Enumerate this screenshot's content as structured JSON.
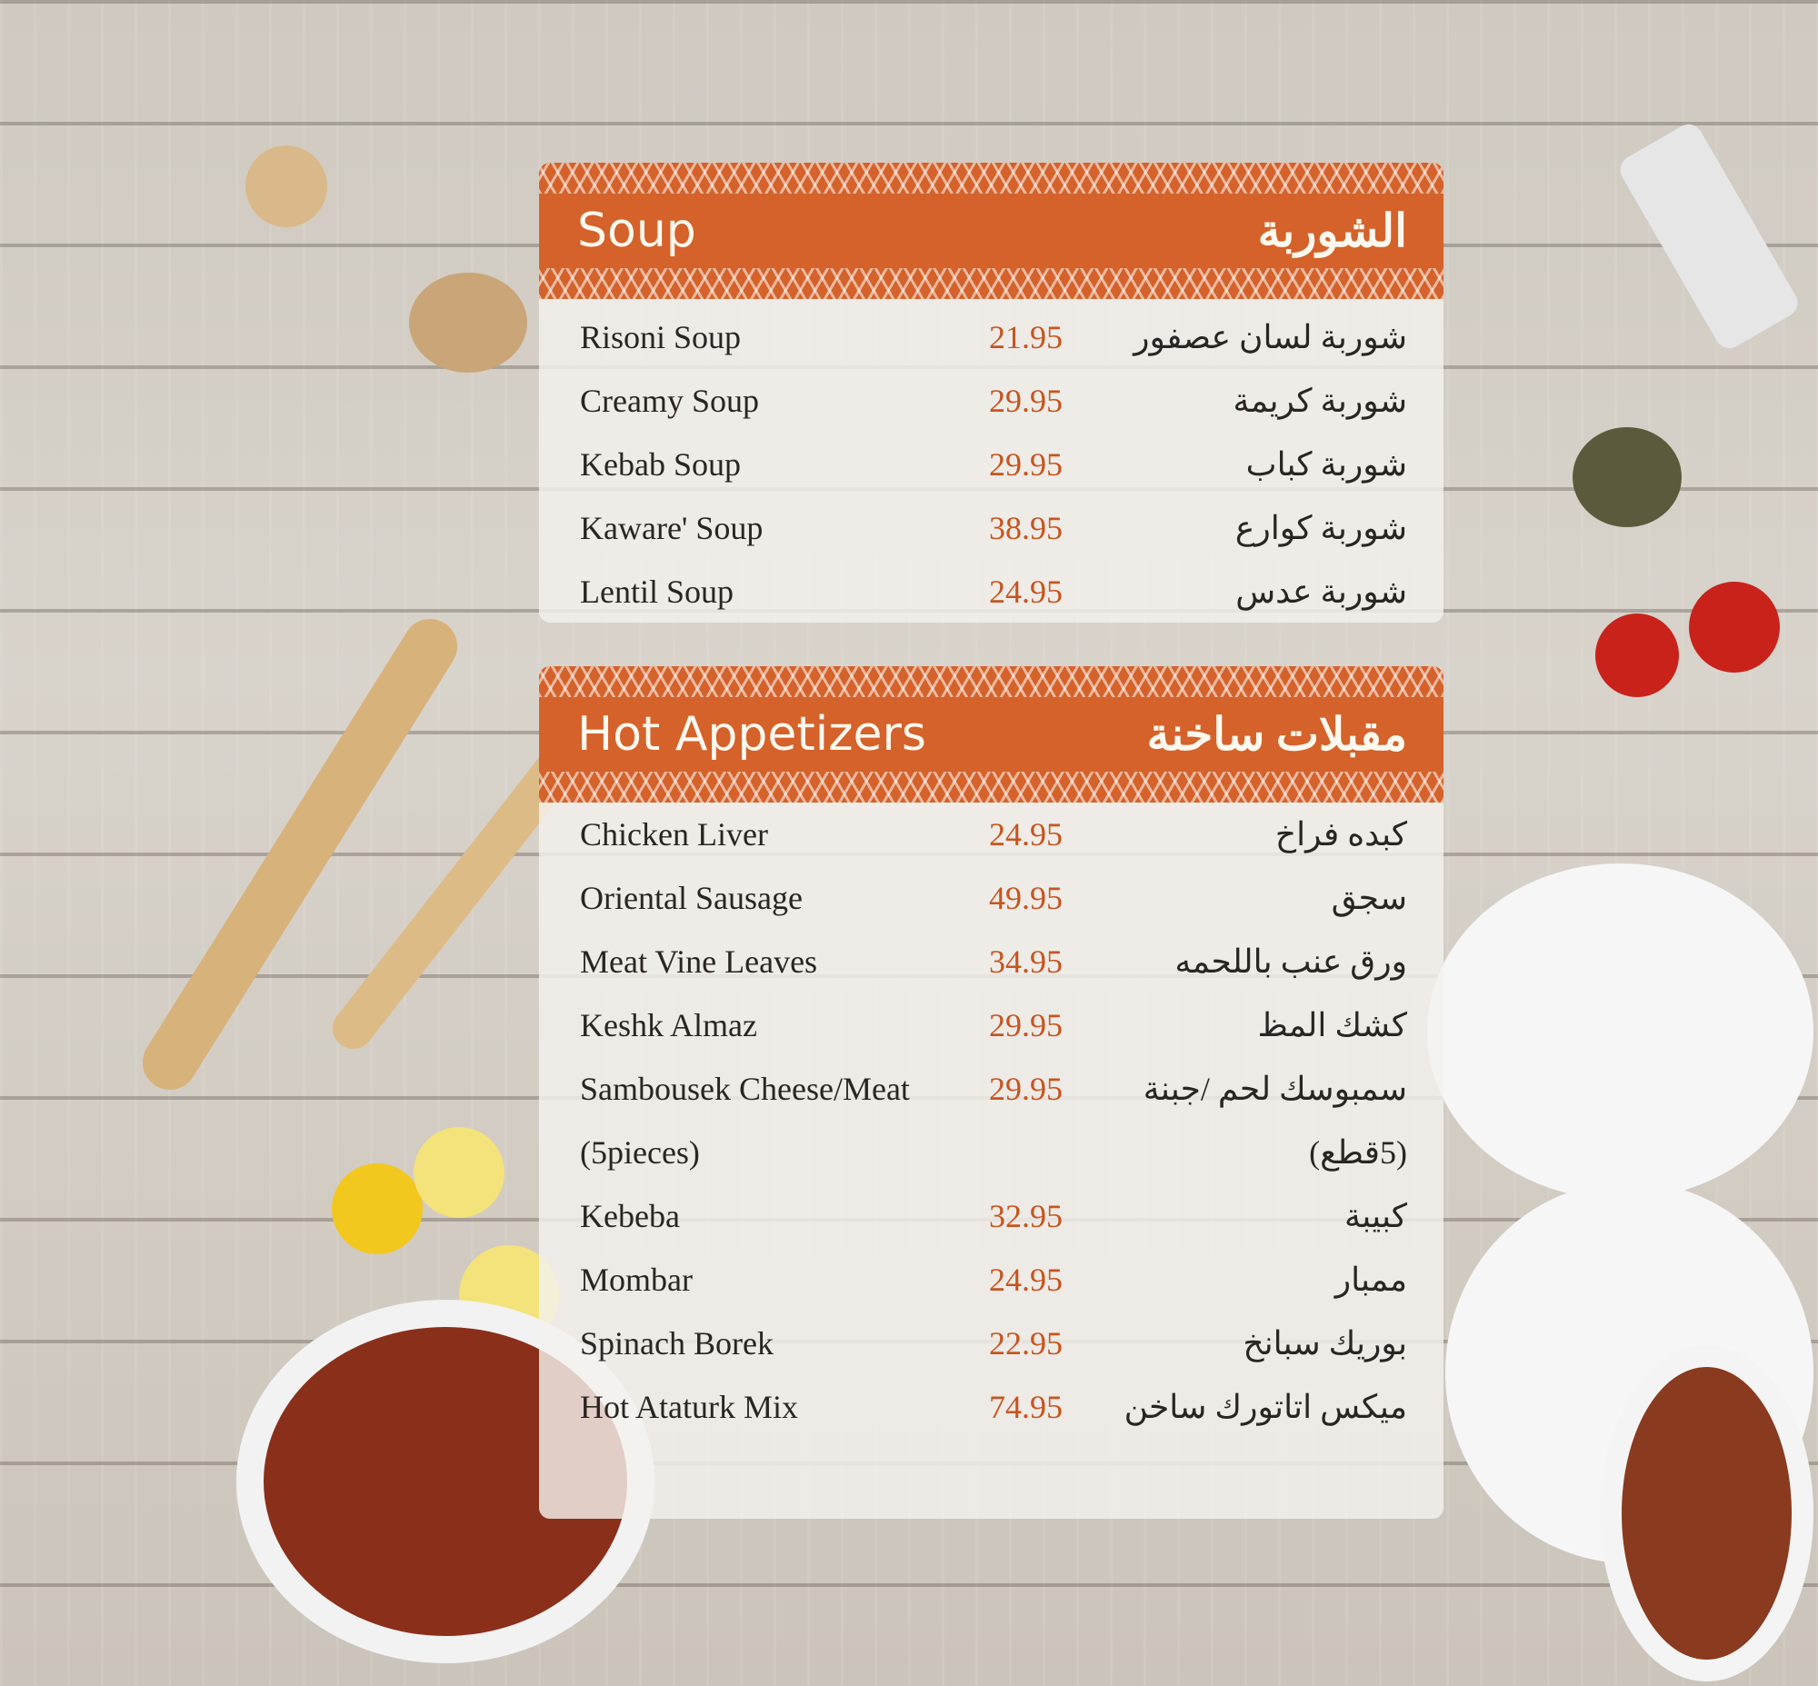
{
  "sections": [
    {
      "title": "Soup",
      "title_ar": "الشوربة",
      "items": [
        {
          "name": "Risoni Soup",
          "price": "21.95",
          "name_ar": "شوربة لسان عصفور"
        },
        {
          "name": "Creamy Soup",
          "price": "29.95",
          "name_ar": "شوربة كريمة"
        },
        {
          "name": "Kebab Soup",
          "price": "29.95",
          "name_ar": "شوربة كباب"
        },
        {
          "name": "Kaware' Soup",
          "price": "38.95",
          "name_ar": "شوربة كوارع"
        },
        {
          "name": "Lentil Soup",
          "price": "24.95",
          "name_ar": "شوربة عدس"
        }
      ]
    },
    {
      "title": "Hot Appetizers",
      "title_ar": "مقبلات ساخنة",
      "items": [
        {
          "name": "Chicken Liver",
          "price": "24.95",
          "name_ar": "كبده فراخ"
        },
        {
          "name": "Oriental Sausage",
          "price": "49.95",
          "name_ar": "سجق"
        },
        {
          "name": "Meat Vine Leaves",
          "price": "34.95",
          "name_ar": "ورق عنب باللحمه"
        },
        {
          "name": "Keshk Almaz",
          "price": "29.95",
          "name_ar": "كشك المظ"
        },
        {
          "name": "Sambousek Cheese/Meat",
          "price": "29.95",
          "name_ar": "سمبوسك لحم /جبنة"
        },
        {
          "name": "(5pieces)",
          "price": "",
          "name_ar": "(5قطع)"
        },
        {
          "name": "Kebeba",
          "price": "32.95",
          "name_ar": "كبيبة"
        },
        {
          "name": "Mombar",
          "price": "24.95",
          "name_ar": "ممبار"
        },
        {
          "name": "Spinach Borek",
          "price": "22.95",
          "name_ar": "بوريك سبانخ"
        },
        {
          "name": "Hot Ataturk Mix",
          "price": "74.95",
          "name_ar": "ميكس اتاتورك ساخن"
        }
      ]
    }
  ],
  "colors": {
    "accent": "#d4622a",
    "price": "#c8541e"
  }
}
